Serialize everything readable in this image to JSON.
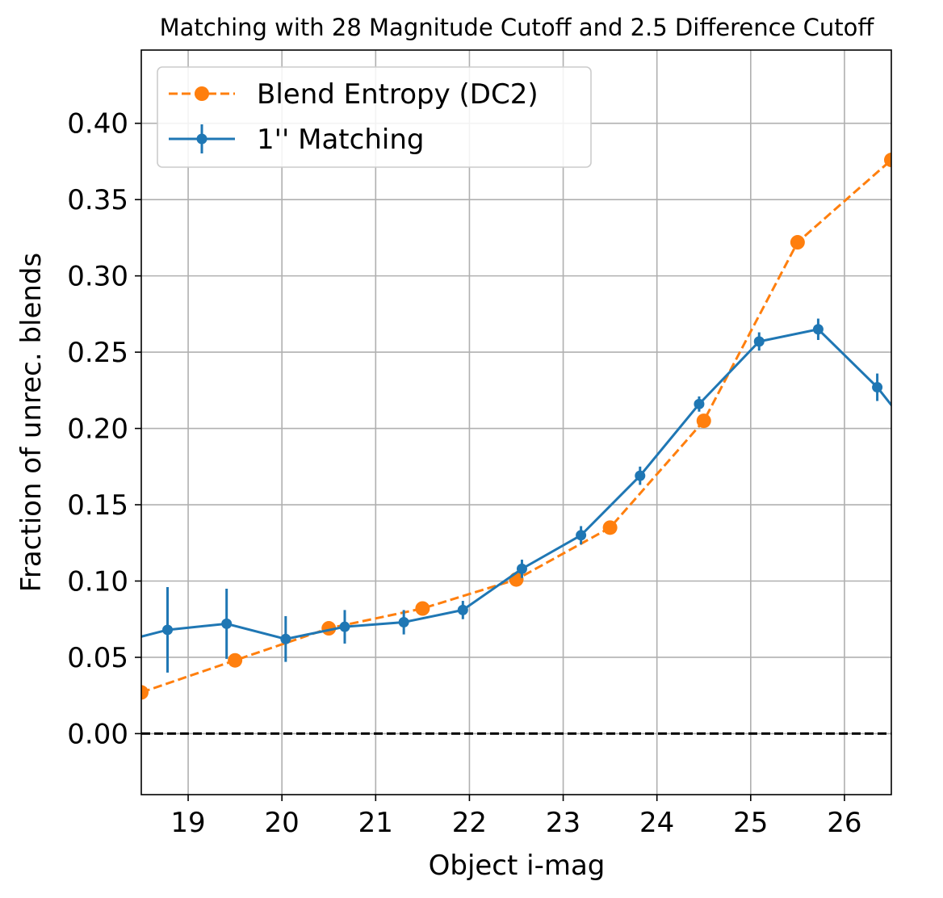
{
  "chart_data": {
    "type": "line",
    "title": "Matching with 28 Magnitude Cutoff and 2.5 Difference Cutoff",
    "xlabel": "Object i-mag",
    "ylabel": "Fraction of unrec. blends",
    "xlim": [
      18.5,
      26.5
    ],
    "ylim": [
      -0.04,
      0.448
    ],
    "xticks": [
      19,
      20,
      21,
      22,
      23,
      24,
      25,
      26
    ],
    "xtick_labels": [
      "19",
      "20",
      "21",
      "22",
      "23",
      "24",
      "25",
      "26"
    ],
    "yticks": [
      0.0,
      0.05,
      0.1,
      0.15,
      0.2,
      0.25,
      0.3,
      0.35,
      0.4
    ],
    "ytick_labels": [
      "0.00",
      "0.05",
      "0.10",
      "0.15",
      "0.20",
      "0.25",
      "0.30",
      "0.35",
      "0.40"
    ],
    "grid": true,
    "legend_position": "top-left",
    "reference_line": {
      "y": 0.0,
      "style": "dashed",
      "color": "#000000"
    },
    "series": [
      {
        "name": "Blend Entropy (DC2)",
        "color": "#ff7f0e",
        "line_style": "dashed",
        "marker": "circle",
        "x": [
          18.5,
          19.5,
          20.5,
          21.5,
          22.5,
          23.5,
          24.5,
          25.5,
          26.5
        ],
        "y": [
          0.027,
          0.048,
          0.069,
          0.082,
          0.101,
          0.135,
          0.205,
          0.322,
          0.376
        ]
      },
      {
        "name": "1'' Matching",
        "color": "#1f77b4",
        "line_style": "solid",
        "marker": "circle",
        "x": [
          18.15,
          18.78,
          19.41,
          20.04,
          20.67,
          21.3,
          21.93,
          22.56,
          23.19,
          23.82,
          24.45,
          25.09,
          25.72,
          26.35,
          26.98
        ],
        "y": [
          0.058,
          0.068,
          0.072,
          0.062,
          0.07,
          0.073,
          0.081,
          0.108,
          0.13,
          0.169,
          0.216,
          0.257,
          0.265,
          0.227,
          0.178
        ],
        "yerr": [
          0.03,
          0.028,
          0.023,
          0.015,
          0.011,
          0.008,
          0.006,
          0.006,
          0.006,
          0.006,
          0.005,
          0.006,
          0.007,
          0.009,
          0.012
        ]
      }
    ]
  }
}
